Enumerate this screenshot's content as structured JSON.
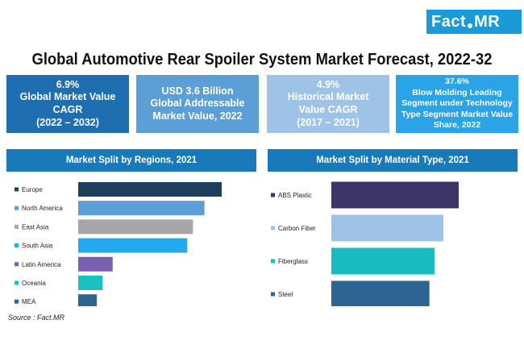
{
  "logo": {
    "part1": "Fact",
    "part2": "MR"
  },
  "title": "Global Automotive Rear Spoiler System Market Forecast, 2022-32",
  "kpis": [
    {
      "lines": [
        "6.9%",
        "Global Market Value",
        "CAGR",
        "(2022 – 2032)"
      ]
    },
    {
      "lines": [
        "USD 3.6 Billion",
        "Global Addressable",
        "Market Value, 2022"
      ]
    },
    {
      "lines": [
        "4.9%",
        "Historical Market",
        "Value CAGR",
        "(2017 – 2021)"
      ]
    },
    {
      "lines": [
        "37.6%",
        "Blow Molding Leading",
        "Segment under Technology",
        "Type Segment Market Value",
        "Share, 2022"
      ]
    }
  ],
  "source": "Source : Fact.MR",
  "chart_data": [
    {
      "type": "bar",
      "orientation": "horizontal",
      "title": "Market Split by Regions, 2021",
      "categories": [
        "Europe",
        "North America",
        "East Asia",
        "South Asia",
        "Latin America",
        "Oceania",
        "MEA"
      ],
      "values": [
        100,
        88,
        80,
        76,
        24,
        17,
        13
      ],
      "colors": [
        "#1f3f5f",
        "#5b9fd6",
        "#a6a6a6",
        "#22aaec",
        "#7b5fb0",
        "#19c1c1",
        "#2d6590"
      ],
      "legend": "left"
    },
    {
      "type": "bar",
      "orientation": "horizontal",
      "title": "Market Split by Material Type, 2021",
      "categories": [
        "ABS Plastic",
        "Carbon Fiber",
        "Fiberglass",
        "Steel"
      ],
      "values": [
        100,
        88,
        81,
        77
      ],
      "colors": [
        "#3f3467",
        "#9fc3e7",
        "#19bcc1",
        "#2d6590"
      ],
      "legend": "left"
    }
  ]
}
